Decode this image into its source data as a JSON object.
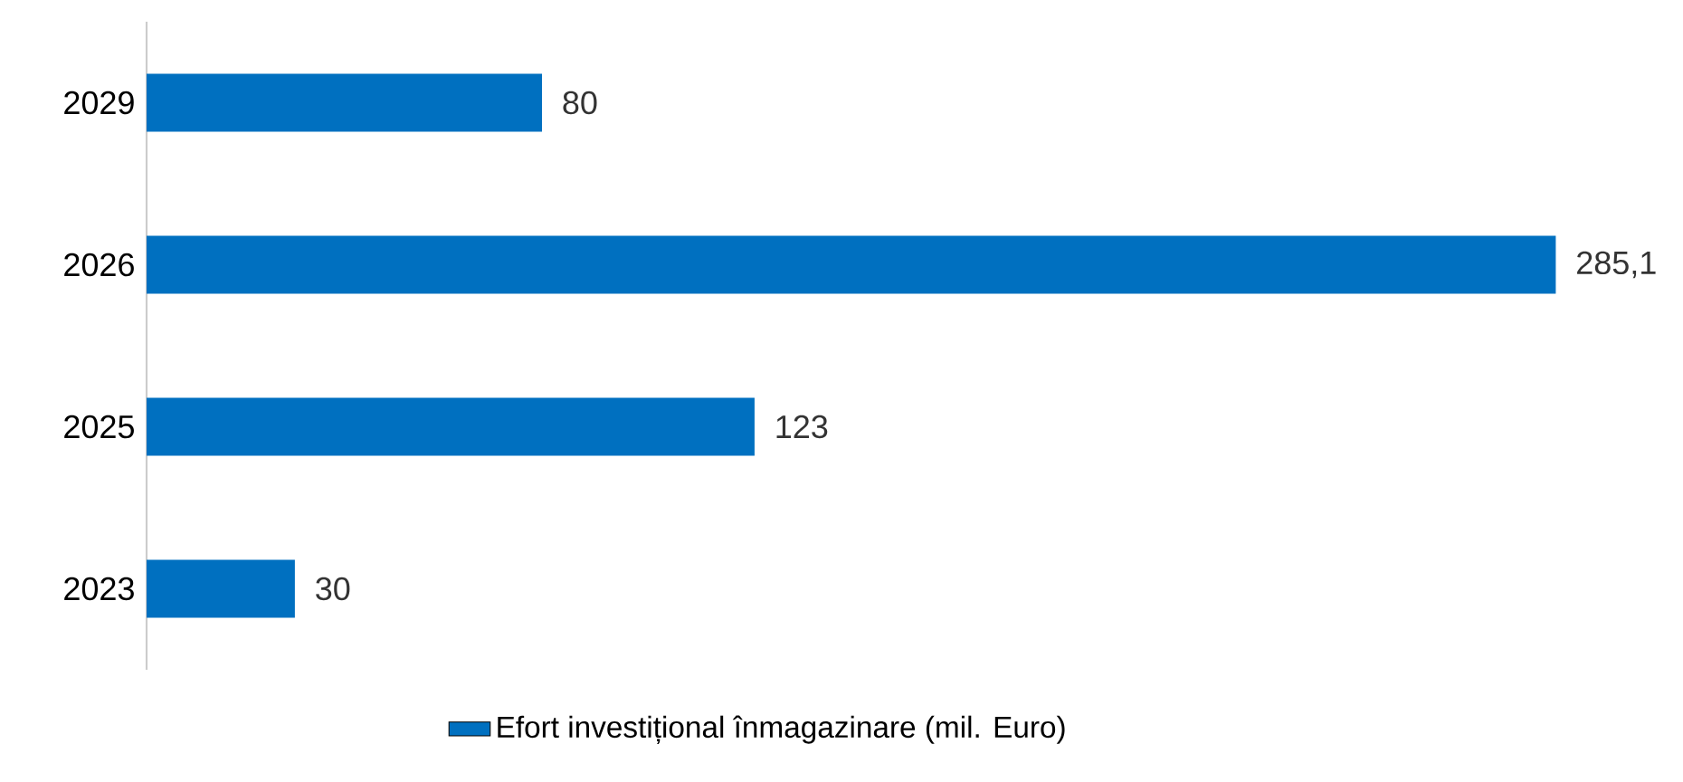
{
  "chart_data": {
    "type": "bar",
    "orientation": "horizontal",
    "categories": [
      "2029",
      "2026",
      "2025",
      "2023"
    ],
    "series": [
      {
        "name": "Efort investițional înmagazinare (mil. Euro)",
        "color": "#0070c0",
        "values": [
          80,
          285.1,
          123,
          30
        ],
        "value_labels": [
          "80",
          "285,1",
          "123",
          "30"
        ]
      }
    ],
    "legend": "bottom"
  }
}
